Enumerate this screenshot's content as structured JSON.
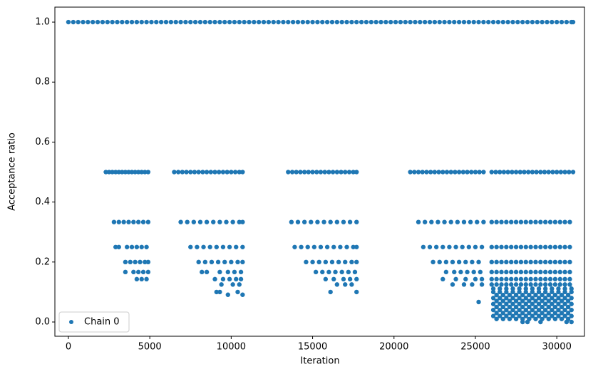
{
  "chart_data": {
    "type": "scatter",
    "xlabel": "Iteration",
    "ylabel": "Acceptance ratio",
    "xlim": [
      -830,
      31700
    ],
    "ylim": [
      -0.0475,
      1.05
    ],
    "xticks": [
      0,
      5000,
      10000,
      15000,
      20000,
      25000,
      30000
    ],
    "yticks": [
      {
        "value": 0,
        "label": "0.0"
      },
      0.2,
      0.4,
      0.6,
      0.8,
      {
        "value": 1,
        "label": "1.0"
      }
    ],
    "grid": false,
    "legend": "lower left",
    "x": [
      0,
      300,
      600,
      900,
      1200,
      1500,
      1800,
      2100,
      2400,
      2700,
      3000,
      3300,
      3600,
      3900,
      4200,
      4500,
      4800,
      5100,
      5400,
      5700,
      6000,
      6300,
      6600,
      6900,
      7200,
      7500,
      7800,
      8100,
      8400,
      8700,
      9000,
      9300,
      9600,
      9900,
      10200,
      10500,
      10800,
      11100,
      11400,
      11700,
      12000,
      12300,
      12600,
      12900,
      13200,
      13500,
      13800,
      14100,
      14400,
      14700,
      15000,
      15300,
      15600,
      15900,
      16200,
      16500,
      16800,
      17100,
      17400,
      17700,
      18000,
      18300,
      18600,
      18900,
      19200,
      19500,
      19800,
      20100,
      20400,
      20700,
      21000,
      21300,
      21600,
      21900,
      22200,
      22500,
      22800,
      23100,
      23400,
      23700,
      24000,
      24300,
      24600,
      24900,
      25200,
      25500,
      25800,
      26100,
      26400,
      26700,
      27000,
      27300,
      27600,
      27900,
      28200,
      28500,
      28800,
      29100,
      29400,
      29700,
      30000,
      30300,
      30600,
      30900,
      31000,
      2300,
      2500,
      2700,
      2900,
      3100,
      3300,
      3500,
      3700,
      3900,
      4100,
      4300,
      4500,
      4700,
      4900,
      2800,
      3100,
      3400,
      3700,
      4000,
      4300,
      4600,
      4900,
      2900,
      3100,
      3600,
      3900,
      4200,
      4500,
      4800,
      3500,
      3800,
      4100,
      4400,
      4700,
      4900,
      3500,
      4000,
      4300,
      4600,
      4900,
      4200,
      4500,
      4800,
      6500,
      6750,
      7000,
      7250,
      7500,
      7750,
      8000,
      8250,
      8500,
      8750,
      9000,
      9250,
      9500,
      9750,
      10000,
      10250,
      10500,
      10700,
      6900,
      7300,
      7700,
      8100,
      8500,
      8900,
      9300,
      9700,
      10100,
      10500,
      10700,
      7500,
      7900,
      8300,
      8700,
      9100,
      9500,
      9900,
      10300,
      10700,
      8000,
      8400,
      8800,
      9200,
      9600,
      10000,
      10400,
      10700,
      8200,
      8500,
      9300,
      9800,
      10200,
      10600,
      9000,
      9500,
      9900,
      10300,
      10600,
      9400,
      10100,
      10500,
      9100,
      9300,
      10400,
      9800,
      10700,
      13500,
      13750,
      14000,
      14250,
      14500,
      14750,
      15000,
      15250,
      15500,
      15750,
      16000,
      16250,
      16500,
      16750,
      17000,
      17250,
      17500,
      17700,
      13700,
      14100,
      14500,
      14900,
      15300,
      15700,
      16100,
      16500,
      16900,
      17300,
      17700,
      13900,
      14300,
      14700,
      15100,
      15500,
      15900,
      16300,
      16700,
      17100,
      17500,
      17700,
      14600,
      15000,
      15400,
      15800,
      16200,
      16600,
      17000,
      17400,
      17700,
      15200,
      15600,
      16000,
      16400,
      16800,
      17200,
      17600,
      15800,
      16300,
      16900,
      17300,
      17700,
      16500,
      17000,
      17400,
      16100,
      17700,
      21000,
      21250,
      21500,
      21750,
      22000,
      22250,
      22500,
      22750,
      23000,
      23250,
      23500,
      23750,
      24000,
      24250,
      24500,
      24750,
      25000,
      25250,
      25500,
      21500,
      21900,
      22300,
      22700,
      23100,
      23500,
      23900,
      24300,
      24700,
      25100,
      25500,
      21800,
      22200,
      22600,
      23000,
      23400,
      23800,
      24200,
      24600,
      25000,
      25400,
      22400,
      22800,
      23200,
      23600,
      24000,
      24400,
      24800,
      25200,
      23200,
      23700,
      24100,
      24500,
      24900,
      25300,
      23000,
      23800,
      24400,
      25000,
      25400,
      23600,
      24300,
      24800,
      25400,
      25200,
      26000,
      26250,
      26500,
      26750,
      27000,
      27250,
      27500,
      27750,
      28000,
      28250,
      28500,
      28750,
      29000,
      29250,
      29500,
      29750,
      30000,
      30250,
      30500,
      30750,
      31000,
      26000,
      26300,
      26600,
      26900,
      27200,
      27500,
      27800,
      28100,
      28400,
      28700,
      29000,
      29300,
      29600,
      29900,
      30200,
      30500,
      30800,
      26000,
      26300,
      26600,
      26900,
      27200,
      27500,
      27800,
      28100,
      28400,
      28700,
      29000,
      29300,
      29600,
      29900,
      30200,
      30500,
      30800,
      26000,
      26300,
      26600,
      26900,
      27200,
      27500,
      27800,
      28100,
      28400,
      28700,
      29000,
      29300,
      29600,
      29900,
      30200,
      30500,
      30800,
      26000,
      26300,
      26600,
      26900,
      27200,
      27500,
      27800,
      28100,
      28400,
      28700,
      29000,
      29300,
      29600,
      29900,
      30200,
      30500,
      30800,
      26000,
      26300,
      26600,
      26900,
      27200,
      27500,
      27800,
      28100,
      28400,
      28700,
      29000,
      29300,
      29600,
      29900,
      30200,
      30500,
      30800,
      26000,
      26300,
      26600,
      26900,
      27200,
      27500,
      27800,
      28100,
      28400,
      28700,
      29000,
      29300,
      29600,
      29900,
      30200,
      30500,
      30800,
      26100,
      26500,
      26900,
      27300,
      27700,
      28100,
      28500,
      28900,
      29300,
      29700,
      30100,
      30500,
      30900,
      26100,
      26500,
      26900,
      27300,
      27700,
      28100,
      28500,
      28900,
      29300,
      29700,
      30100,
      30500,
      30900,
      26300,
      26700,
      27100,
      27500,
      27900,
      28300,
      28700,
      29100,
      29500,
      29900,
      30300,
      30700,
      26100,
      26500,
      26900,
      27300,
      27700,
      28100,
      28500,
      28900,
      29300,
      29700,
      30100,
      30500,
      30900,
      26300,
      26700,
      27100,
      27500,
      27900,
      28300,
      28700,
      29100,
      29500,
      29900,
      30300,
      30700,
      26100,
      26500,
      26900,
      27300,
      27700,
      28100,
      28500,
      28900,
      29300,
      29700,
      30100,
      30500,
      30900,
      26300,
      26700,
      27100,
      27500,
      27900,
      28300,
      28700,
      29100,
      29500,
      29900,
      30300,
      30700,
      26100,
      26500,
      26900,
      27300,
      27700,
      28100,
      28500,
      28900,
      29300,
      29700,
      30100,
      30500,
      30900,
      26300,
      26700,
      27100,
      27500,
      27900,
      28300,
      28700,
      29100,
      29500,
      29900,
      30300,
      30700,
      26100,
      26500,
      26900,
      27300,
      27700,
      28100,
      28500,
      28900,
      29300,
      29700,
      30100,
      30500,
      30900,
      26300,
      26700,
      27100,
      27500,
      27900,
      28300,
      28700,
      29100,
      29500,
      29900,
      30300,
      30700,
      27900,
      28200,
      29000,
      30600,
      30900
    ],
    "series": [
      {
        "name": "Chain 0",
        "color": "#1f77b4",
        "values": [
          1,
          1,
          1,
          1,
          1,
          1,
          1,
          1,
          1,
          1,
          1,
          1,
          1,
          1,
          1,
          1,
          1,
          1,
          1,
          1,
          1,
          1,
          1,
          1,
          1,
          1,
          1,
          1,
          1,
          1,
          1,
          1,
          1,
          1,
          1,
          1,
          1,
          1,
          1,
          1,
          1,
          1,
          1,
          1,
          1,
          1,
          1,
          1,
          1,
          1,
          1,
          1,
          1,
          1,
          1,
          1,
          1,
          1,
          1,
          1,
          1,
          1,
          1,
          1,
          1,
          1,
          1,
          1,
          1,
          1,
          1,
          1,
          1,
          1,
          1,
          1,
          1,
          1,
          1,
          1,
          1,
          1,
          1,
          1,
          1,
          1,
          1,
          1,
          1,
          1,
          1,
          1,
          1,
          1,
          1,
          1,
          1,
          1,
          1,
          1,
          1,
          1,
          1,
          1,
          1,
          0.5,
          0.5,
          0.5,
          0.5,
          0.5,
          0.5,
          0.5,
          0.5,
          0.5,
          0.5,
          0.5,
          0.5,
          0.5,
          0.5,
          0.3333,
          0.3333,
          0.3333,
          0.3333,
          0.3333,
          0.3333,
          0.3333,
          0.3333,
          0.25,
          0.25,
          0.25,
          0.25,
          0.25,
          0.25,
          0.25,
          0.2,
          0.2,
          0.2,
          0.2,
          0.2,
          0.2,
          0.1667,
          0.1667,
          0.1667,
          0.1667,
          0.1667,
          0.1429,
          0.1429,
          0.1429,
          0.5,
          0.5,
          0.5,
          0.5,
          0.5,
          0.5,
          0.5,
          0.5,
          0.5,
          0.5,
          0.5,
          0.5,
          0.5,
          0.5,
          0.5,
          0.5,
          0.5,
          0.5,
          0.3333,
          0.3333,
          0.3333,
          0.3333,
          0.3333,
          0.3333,
          0.3333,
          0.3333,
          0.3333,
          0.3333,
          0.3333,
          0.25,
          0.25,
          0.25,
          0.25,
          0.25,
          0.25,
          0.25,
          0.25,
          0.25,
          0.2,
          0.2,
          0.2,
          0.2,
          0.2,
          0.2,
          0.2,
          0.2,
          0.1667,
          0.1667,
          0.1667,
          0.1667,
          0.1667,
          0.1667,
          0.1429,
          0.1429,
          0.1429,
          0.1429,
          0.1429,
          0.125,
          0.125,
          0.125,
          0.1,
          0.1,
          0.1,
          0.0909,
          0.0909,
          0.5,
          0.5,
          0.5,
          0.5,
          0.5,
          0.5,
          0.5,
          0.5,
          0.5,
          0.5,
          0.5,
          0.5,
          0.5,
          0.5,
          0.5,
          0.5,
          0.5,
          0.5,
          0.3333,
          0.3333,
          0.3333,
          0.3333,
          0.3333,
          0.3333,
          0.3333,
          0.3333,
          0.3333,
          0.3333,
          0.3333,
          0.25,
          0.25,
          0.25,
          0.25,
          0.25,
          0.25,
          0.25,
          0.25,
          0.25,
          0.25,
          0.25,
          0.2,
          0.2,
          0.2,
          0.2,
          0.2,
          0.2,
          0.2,
          0.2,
          0.2,
          0.1667,
          0.1667,
          0.1667,
          0.1667,
          0.1667,
          0.1667,
          0.1667,
          0.1429,
          0.1429,
          0.1429,
          0.1429,
          0.1429,
          0.125,
          0.125,
          0.125,
          0.1,
          0.1,
          0.5,
          0.5,
          0.5,
          0.5,
          0.5,
          0.5,
          0.5,
          0.5,
          0.5,
          0.5,
          0.5,
          0.5,
          0.5,
          0.5,
          0.5,
          0.5,
          0.5,
          0.5,
          0.5,
          0.3333,
          0.3333,
          0.3333,
          0.3333,
          0.3333,
          0.3333,
          0.3333,
          0.3333,
          0.3333,
          0.3333,
          0.3333,
          0.25,
          0.25,
          0.25,
          0.25,
          0.25,
          0.25,
          0.25,
          0.25,
          0.25,
          0.25,
          0.2,
          0.2,
          0.2,
          0.2,
          0.2,
          0.2,
          0.2,
          0.2,
          0.1667,
          0.1667,
          0.1667,
          0.1667,
          0.1667,
          0.1667,
          0.1429,
          0.1429,
          0.1429,
          0.1429,
          0.1429,
          0.125,
          0.125,
          0.125,
          0.125,
          0.0667,
          0.5,
          0.5,
          0.5,
          0.5,
          0.5,
          0.5,
          0.5,
          0.5,
          0.5,
          0.5,
          0.5,
          0.5,
          0.5,
          0.5,
          0.5,
          0.5,
          0.5,
          0.5,
          0.5,
          0.5,
          0.5,
          0.3333,
          0.3333,
          0.3333,
          0.3333,
          0.3333,
          0.3333,
          0.3333,
          0.3333,
          0.3333,
          0.3333,
          0.3333,
          0.3333,
          0.3333,
          0.3333,
          0.3333,
          0.3333,
          0.3333,
          0.25,
          0.25,
          0.25,
          0.25,
          0.25,
          0.25,
          0.25,
          0.25,
          0.25,
          0.25,
          0.25,
          0.25,
          0.25,
          0.25,
          0.25,
          0.25,
          0.25,
          0.2,
          0.2,
          0.2,
          0.2,
          0.2,
          0.2,
          0.2,
          0.2,
          0.2,
          0.2,
          0.2,
          0.2,
          0.2,
          0.2,
          0.2,
          0.2,
          0.2,
          0.1667,
          0.1667,
          0.1667,
          0.1667,
          0.1667,
          0.1667,
          0.1667,
          0.1667,
          0.1667,
          0.1667,
          0.1667,
          0.1667,
          0.1667,
          0.1667,
          0.1667,
          0.1667,
          0.1667,
          0.1429,
          0.1429,
          0.1429,
          0.1429,
          0.1429,
          0.1429,
          0.1429,
          0.1429,
          0.1429,
          0.1429,
          0.1429,
          0.1429,
          0.1429,
          0.1429,
          0.1429,
          0.1429,
          0.1429,
          0.125,
          0.125,
          0.125,
          0.125,
          0.125,
          0.125,
          0.125,
          0.125,
          0.125,
          0.125,
          0.125,
          0.125,
          0.125,
          0.125,
          0.125,
          0.125,
          0.125,
          0.1111,
          0.1111,
          0.1111,
          0.1111,
          0.1111,
          0.1111,
          0.1111,
          0.1111,
          0.1111,
          0.1111,
          0.1111,
          0.1111,
          0.1111,
          0.1,
          0.1,
          0.1,
          0.1,
          0.1,
          0.1,
          0.1,
          0.1,
          0.1,
          0.1,
          0.1,
          0.1,
          0.1,
          0.09,
          0.09,
          0.09,
          0.09,
          0.09,
          0.09,
          0.09,
          0.09,
          0.09,
          0.09,
          0.09,
          0.09,
          0.08,
          0.08,
          0.08,
          0.08,
          0.08,
          0.08,
          0.08,
          0.08,
          0.08,
          0.08,
          0.08,
          0.08,
          0.08,
          0.07,
          0.07,
          0.07,
          0.07,
          0.07,
          0.07,
          0.07,
          0.07,
          0.07,
          0.07,
          0.07,
          0.07,
          0.06,
          0.06,
          0.06,
          0.06,
          0.06,
          0.06,
          0.06,
          0.06,
          0.06,
          0.06,
          0.06,
          0.06,
          0.06,
          0.05,
          0.05,
          0.05,
          0.05,
          0.05,
          0.05,
          0.05,
          0.05,
          0.05,
          0.05,
          0.05,
          0.05,
          0.04,
          0.04,
          0.04,
          0.04,
          0.04,
          0.04,
          0.04,
          0.04,
          0.04,
          0.04,
          0.04,
          0.04,
          0.04,
          0.03,
          0.03,
          0.03,
          0.03,
          0.03,
          0.03,
          0.03,
          0.03,
          0.03,
          0.03,
          0.03,
          0.03,
          0.02,
          0.02,
          0.02,
          0.02,
          0.02,
          0.02,
          0.02,
          0.02,
          0.02,
          0.02,
          0.02,
          0.02,
          0.02,
          0.01,
          0.01,
          0.01,
          0.01,
          0.01,
          0.01,
          0.01,
          0.01,
          0.01,
          0.01,
          0.01,
          0.01,
          0,
          0,
          0,
          0,
          0
        ]
      }
    ]
  }
}
